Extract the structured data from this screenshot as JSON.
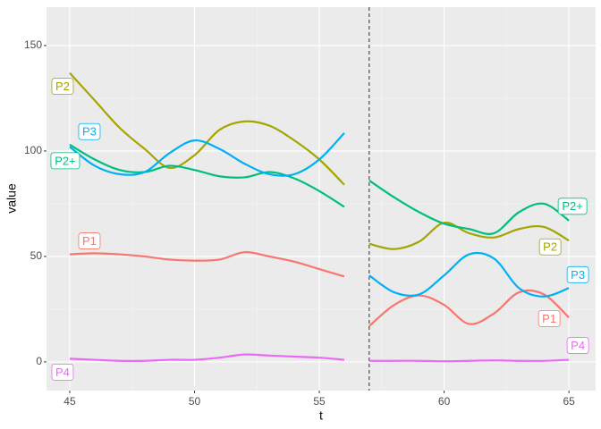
{
  "chart_data": {
    "type": "line",
    "x_label": "t",
    "y_label": "value",
    "x": [
      45,
      46,
      47,
      48,
      49,
      50,
      51,
      52,
      53,
      54,
      55,
      56,
      56.5,
      57,
      58,
      59,
      60,
      61,
      62,
      63,
      64,
      65
    ],
    "series": [
      {
        "name": "P1",
        "color": "#F8766D",
        "values": [
          51,
          51.5,
          51,
          50,
          48.5,
          48,
          48.5,
          52,
          50,
          47.5,
          44,
          40.5,
          null,
          17,
          27,
          31.5,
          27,
          18,
          23,
          33,
          32,
          21
        ]
      },
      {
        "name": "P2",
        "color": "#A3A500",
        "values": [
          137,
          124,
          111,
          101,
          92,
          98,
          110,
          114,
          112,
          105,
          96,
          84,
          null,
          56,
          53.5,
          57,
          66,
          61,
          59,
          63,
          64,
          57.5
        ]
      },
      {
        "name": "P2+",
        "color": "#00BF7D",
        "values": [
          103,
          96,
          91,
          90,
          93,
          91,
          88,
          87.5,
          90,
          87,
          81,
          73.5,
          null,
          86,
          78,
          71,
          65.5,
          63,
          61,
          71,
          75,
          67
        ]
      },
      {
        "name": "P3",
        "color": "#00B0F6",
        "values": [
          102,
          93,
          89,
          90,
          99,
          105,
          101,
          94,
          89,
          89,
          96,
          108.5,
          null,
          41,
          33,
          32,
          41,
          51,
          49,
          35,
          31,
          35
        ]
      },
      {
        "name": "P4",
        "color": "#E76BF3",
        "values": [
          1.5,
          1,
          0.5,
          0.5,
          1,
          1,
          2,
          3.5,
          3,
          2.5,
          2,
          1,
          null,
          0.5,
          0.5,
          0.5,
          0.3,
          0.5,
          0.7,
          0.5,
          0.5,
          1
        ]
      }
    ],
    "vline": 57,
    "xlim": [
      44.07,
      66.07
    ],
    "ylim": [
      -13.6,
      168.2
    ],
    "xticks": [
      45,
      50,
      55,
      60,
      65
    ],
    "yticks": [
      0,
      50,
      100,
      150
    ],
    "grid": true
  }
}
